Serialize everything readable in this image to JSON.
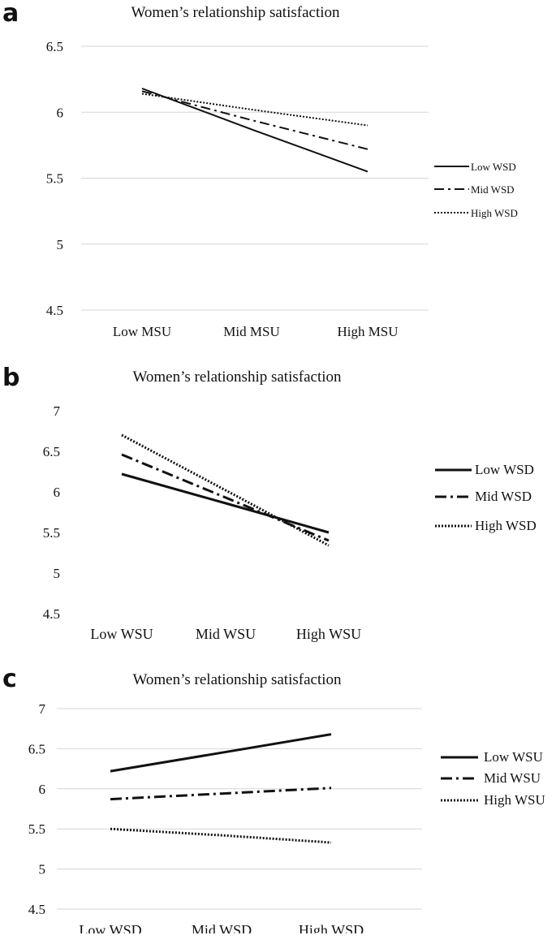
{
  "chart_data": [
    {
      "panel_letter": "a",
      "type": "line",
      "title": "Women’s  relationship satisfaction",
      "categories": [
        "Low MSU",
        "Mid MSU",
        "High MSU"
      ],
      "ylim": [
        4.5,
        6.5
      ],
      "yticks": [
        4.5,
        5,
        5.5,
        6,
        6.5
      ],
      "ytick_labels": [
        "4.5",
        "5",
        "5.5",
        "6",
        "6.5"
      ],
      "grid": true,
      "legend_position": "right",
      "series": [
        {
          "name": "Low WSD",
          "style": "solid",
          "values": [
            6.18,
            5.87,
            5.55
          ]
        },
        {
          "name": "Mid WSD",
          "style": "dashdot",
          "values": [
            6.16,
            5.94,
            5.72
          ]
        },
        {
          "name": "High WSD",
          "style": "dotted",
          "values": [
            6.14,
            6.02,
            5.9
          ]
        }
      ]
    },
    {
      "panel_letter": "b",
      "type": "line",
      "title": "Women’s  relationship satisfaction",
      "categories": [
        "Low WSU",
        "Mid WSU",
        "High WSU"
      ],
      "ylim": [
        4.5,
        7
      ],
      "yticks": [
        4.5,
        5,
        5.5,
        6,
        6.5,
        7
      ],
      "ytick_labels": [
        "4.5",
        "5",
        "5.5",
        "6",
        "6.5",
        "7"
      ],
      "grid": false,
      "legend_position": "right",
      "series": [
        {
          "name": "Low WSD",
          "style": "solid",
          "values": [
            6.22,
            5.86,
            5.5
          ]
        },
        {
          "name": "Mid WSD",
          "style": "dashdot",
          "values": [
            6.46,
            5.93,
            5.4
          ]
        },
        {
          "name": "High WSD",
          "style": "dotted",
          "values": [
            6.7,
            6.02,
            5.34
          ]
        }
      ]
    },
    {
      "panel_letter": "c",
      "type": "line",
      "title": "Women’s  relationship satisfaction",
      "categories": [
        "Low WSD",
        "Mid WSD",
        "High WSD"
      ],
      "ylim": [
        4.5,
        7
      ],
      "yticks": [
        4.5,
        5,
        5.5,
        6,
        6.5,
        7
      ],
      "ytick_labels": [
        "4.5",
        "5",
        "5.5",
        "6",
        "6.5",
        "7"
      ],
      "grid": true,
      "legend_position": "right",
      "series": [
        {
          "name": "Low WSU",
          "style": "solid",
          "values": [
            6.22,
            6.45,
            6.68
          ]
        },
        {
          "name": "Mid WSU",
          "style": "dashdot",
          "values": [
            5.87,
            5.94,
            6.01
          ]
        },
        {
          "name": "High WSU",
          "style": "dotted",
          "values": [
            5.5,
            5.42,
            5.33
          ]
        }
      ]
    }
  ]
}
